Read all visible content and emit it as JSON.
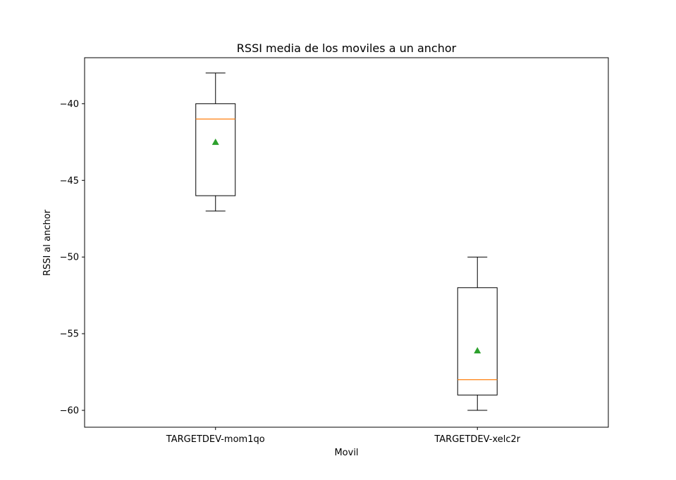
{
  "chart_data": {
    "type": "box",
    "title": "RSSI media de los moviles a un anchor",
    "xlabel": "Movil",
    "ylabel": "RSSI al anchor",
    "categories": [
      "TARGETDEV-mom1qo",
      "TARGETDEV-xelc2r"
    ],
    "boxes": [
      {
        "category": "TARGETDEV-mom1qo",
        "whisker_low": -47,
        "q1": -46,
        "median": -41,
        "q3": -40,
        "whisker_high": -38,
        "mean": -42.5
      },
      {
        "category": "TARGETDEV-xelc2r",
        "whisker_low": -60,
        "q1": -59,
        "median": -58,
        "q3": -52,
        "whisker_high": -50,
        "mean": -56.1
      }
    ],
    "ylim": [
      -61.1,
      -37.0
    ],
    "yticks": [
      -60,
      -55,
      -50,
      -45,
      -40
    ],
    "ytick_labels": [
      "−60",
      "−55",
      "−50",
      "−45",
      "−40"
    ],
    "grid": false,
    "colors": {
      "box": "#000000",
      "median": "#ff7f0e",
      "mean": "#2ca02c"
    }
  }
}
